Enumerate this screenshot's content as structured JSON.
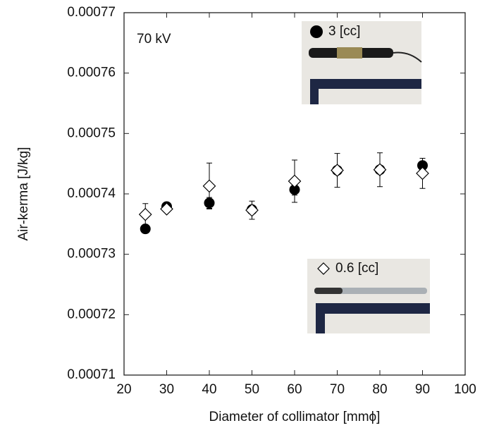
{
  "chart_data": {
    "type": "scatter",
    "annotation": "70 kV",
    "xlabel": "Diameter of collimator [mmϕ]",
    "ylabel": "Air-kerma [J/kg]",
    "xlim": [
      20,
      100
    ],
    "xticks": [
      20,
      30,
      40,
      50,
      60,
      70,
      80,
      90,
      100
    ],
    "ylim": [
      0.00071,
      0.00077
    ],
    "yticks": [
      0.00071,
      0.00072,
      0.00073,
      0.00074,
      0.00075,
      0.00076,
      0.00077
    ],
    "series": [
      {
        "name": "3 [cc]",
        "marker": "circle",
        "color": "#000000",
        "x": [
          25,
          30,
          40,
          50,
          60,
          70,
          80,
          90
        ],
        "values": [
          0.0007342,
          0.0007379,
          0.0007385,
          0.0007374,
          0.0007407,
          0.0007439,
          0.000744,
          0.0007447
        ],
        "errors": [
          null,
          null,
          9e-07,
          null,
          9e-07,
          null,
          null,
          null
        ]
      },
      {
        "name": "0.6 [cc]",
        "marker": "diamond",
        "color": "#000000",
        "x": [
          25,
          30,
          40,
          50,
          60,
          70,
          80,
          90
        ],
        "values": [
          0.0007366,
          0.0007375,
          0.0007413,
          0.0007373,
          0.0007421,
          0.0007439,
          0.000744,
          0.0007434
        ],
        "errors": [
          1.8e-06,
          null,
          3.8e-06,
          1.5e-06,
          3.5e-06,
          2.8e-06,
          2.8e-06,
          2.5e-06
        ]
      }
    ]
  }
}
